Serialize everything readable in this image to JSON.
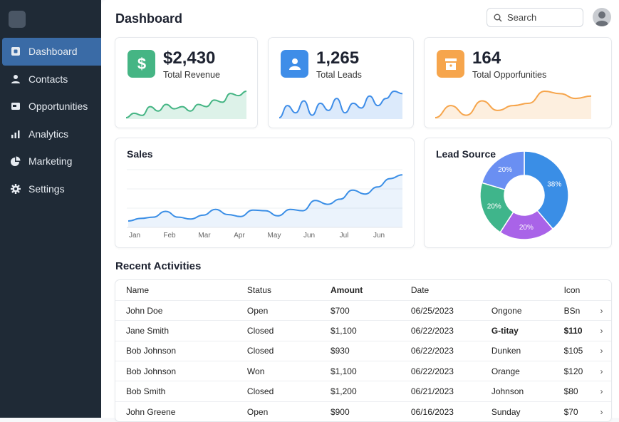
{
  "sidebar": {
    "items": [
      {
        "label": "Dashboard",
        "icon": "dashboard-icon",
        "active": true
      },
      {
        "label": "Contacts",
        "icon": "person-icon"
      },
      {
        "label": "Opportunities",
        "icon": "card-icon"
      },
      {
        "label": "Analytics",
        "icon": "bar-chart-icon"
      },
      {
        "label": "Marketing",
        "icon": "pie-chart-icon"
      },
      {
        "label": "Settings",
        "icon": "gear-icon"
      }
    ]
  },
  "header": {
    "title": "Dashboard",
    "search_placeholder": "Search"
  },
  "stats": [
    {
      "value": "$2,430",
      "label": "Total Revenue",
      "color": "#45b584",
      "spark": [
        3,
        5,
        4,
        8,
        6,
        9,
        7,
        8,
        6,
        9,
        8,
        11,
        10,
        14,
        13,
        15
      ]
    },
    {
      "value": "1,265",
      "label": "Total Leads",
      "color": "#3e8de8",
      "spark": [
        4,
        9,
        6,
        11,
        5,
        10,
        7,
        12,
        6,
        10,
        8,
        13,
        9,
        12,
        15,
        14
      ]
    },
    {
      "value": "164",
      "label": "Total Opporfunities",
      "color": "#f6a54c",
      "spark": [
        2,
        7,
        3,
        9,
        5,
        7,
        8,
        13,
        12,
        10,
        11
      ]
    }
  ],
  "sales": {
    "title": "Sales",
    "x_labels": [
      "Jan",
      "Feb",
      "Mar",
      "Apr",
      "May",
      "Jun",
      "Jul",
      "Jun"
    ],
    "values": [
      10,
      14,
      16,
      25,
      16,
      13,
      19,
      28,
      20,
      17,
      27,
      26,
      18,
      28,
      26,
      42,
      36,
      44,
      58,
      52,
      63,
      76,
      82
    ]
  },
  "lead_source": {
    "title": "Lead Source",
    "slices": [
      {
        "label": "38%",
        "value": 38,
        "color": "#3a8ee6"
      },
      {
        "label": "20%",
        "value": 20,
        "color": "#a963e8"
      },
      {
        "label": "20%",
        "value": 20,
        "color": "#3fb58b"
      },
      {
        "label": "20%",
        "value": 20,
        "color": "#6a8ff2"
      }
    ]
  },
  "activities": {
    "title": "Recent Activities",
    "headers": [
      "Name",
      "Status",
      "Amount",
      "Date",
      "",
      "Icon",
      ""
    ],
    "rows": [
      [
        "John Doe",
        "Open",
        "$700",
        "06/25/2023",
        "Ongone",
        "BSn"
      ],
      [
        "Jane Smith",
        "Closed",
        "$1,100",
        "06/22/2023",
        "G-titay",
        "$110"
      ],
      [
        "Bob Johnson",
        "Closed",
        "$930",
        "06/22/2023",
        "Dunken",
        "$105"
      ],
      [
        "Bob Johnson",
        "Won",
        "$1,100",
        "06/22/2023",
        "Orange",
        "$120"
      ],
      [
        "Bob Smith",
        "Closed",
        "$1,200",
        "06/21/2023",
        "Johnson",
        "$80"
      ],
      [
        "John Greene",
        "Open",
        "$900",
        "06/16/2023",
        "Sunday",
        "$70"
      ]
    ]
  }
}
